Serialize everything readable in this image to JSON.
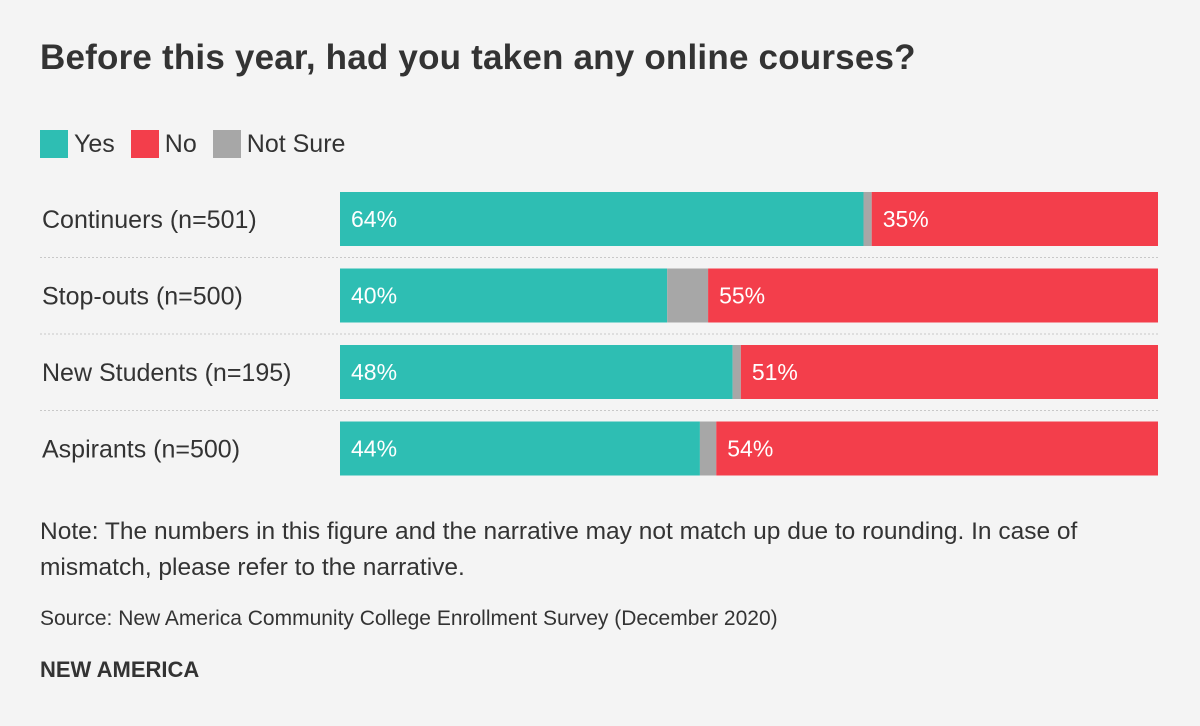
{
  "colors": {
    "yes": "#2ebeb3",
    "no": "#f33e4b",
    "not_sure": "#a7a7a7"
  },
  "chart_data": {
    "type": "bar",
    "orientation": "horizontal",
    "stacked": true,
    "title": "Before this year, had you taken any online courses?",
    "legend_position": "top-left",
    "categories": [
      "Continuers (n=501)",
      "Stop-outs (n=500)",
      "New Students (n=195)",
      "Aspirants (n=500)"
    ],
    "series": [
      {
        "name": "Yes",
        "color": "#2ebeb3",
        "values": [
          64,
          40,
          48,
          44
        ],
        "labels": [
          "64%",
          "40%",
          "48%",
          "44%"
        ]
      },
      {
        "name": "Not Sure",
        "color": "#a7a7a7",
        "values": [
          1,
          5,
          1,
          2
        ]
      },
      {
        "name": "No",
        "color": "#f33e4b",
        "values": [
          35,
          55,
          51,
          54
        ],
        "labels": [
          "35%",
          "55%",
          "51%",
          "54%"
        ]
      }
    ],
    "xlim": [
      0,
      100
    ],
    "grid": false
  },
  "legend": [
    {
      "label": "Yes",
      "color": "#2ebeb3"
    },
    {
      "label": "No",
      "color": "#f33e4b"
    },
    {
      "label": "Not Sure",
      "color": "#a7a7a7"
    }
  ],
  "note": "Note: The numbers in this figure and the narrative may not match up due to rounding. In case of mismatch, please refer to the narrative.",
  "source": "Source: New America Community College Enrollment Survey (December 2020)",
  "brand": "NEW AMERICA"
}
